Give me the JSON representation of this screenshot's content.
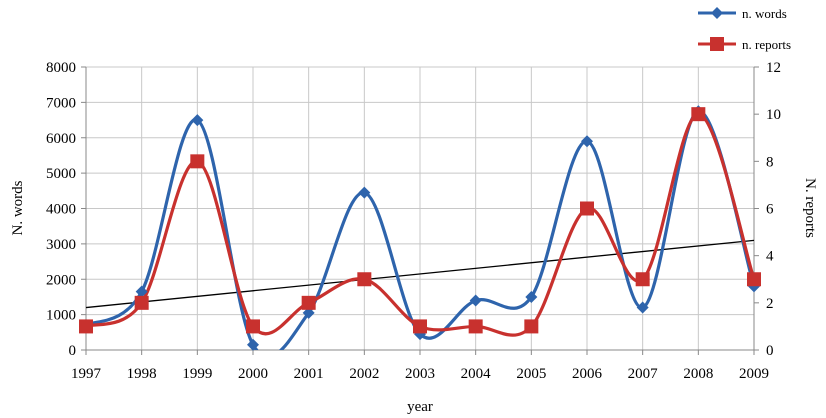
{
  "chart_data": {
    "type": "line",
    "x": [
      "1997",
      "1998",
      "1999",
      "2000",
      "2001",
      "2002",
      "2003",
      "2004",
      "2005",
      "2006",
      "2007",
      "2008",
      "2009"
    ],
    "xlabel": "year",
    "ylabel_left": "N. words",
    "ylabel_right": "N. reports",
    "ylim_left": [
      0,
      8000
    ],
    "ylim_right": [
      0,
      12
    ],
    "yticks_left": [
      "0",
      "1000",
      "2000",
      "3000",
      "4000",
      "5000",
      "6000",
      "7000",
      "8000"
    ],
    "yticks_right": [
      "0",
      "2",
      "4",
      "6",
      "8",
      "10",
      "12"
    ],
    "grid": true,
    "legend_position": "top-right",
    "series": [
      {
        "name": "n. words",
        "axis": "left",
        "color": "#2e64ac",
        "marker": "diamond",
        "smooth": true,
        "values": [
          700,
          1650,
          6500,
          150,
          1050,
          4450,
          450,
          1400,
          1500,
          5900,
          1200,
          6750,
          1800
        ]
      },
      {
        "name": "n. reports",
        "axis": "right",
        "color": "#c8312e",
        "marker": "square",
        "smooth": true,
        "values": [
          1,
          2,
          8,
          1,
          2,
          3,
          1,
          1,
          1,
          6,
          3,
          10,
          3
        ]
      }
    ],
    "trendline": {
      "axis": "left",
      "color": "#000000",
      "start": 1200,
      "end": 3100
    }
  }
}
